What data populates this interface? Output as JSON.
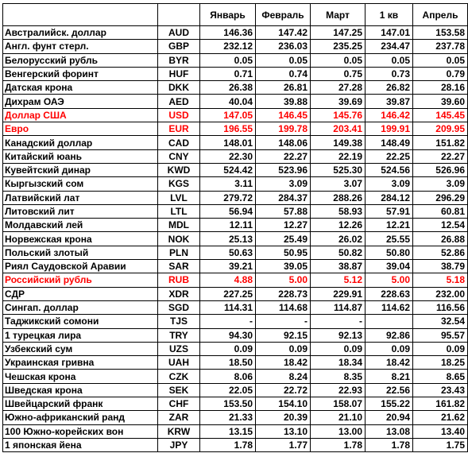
{
  "colors": {
    "text": "#000000",
    "highlight": "#ff0000",
    "grid": "#000000",
    "background": "#ffffff"
  },
  "headers": [
    "",
    "",
    "Январь",
    "Февраль",
    "Март",
    "1 кв",
    "Апрель"
  ],
  "rows": [
    {
      "name": "Австралийск. доллар",
      "code": "AUD",
      "values": [
        "146.36",
        "147.42",
        "147.25",
        "147.01",
        "153.58"
      ],
      "highlight": false
    },
    {
      "name": "Англ. фунт стерл.",
      "code": "GBP",
      "values": [
        "232.12",
        "236.03",
        "235.25",
        "234.47",
        "237.78"
      ],
      "highlight": false
    },
    {
      "name": "Белорусский рубль",
      "code": "BYR",
      "values": [
        "0.05",
        "0.05",
        "0.05",
        "0.05",
        "0.05"
      ],
      "highlight": false
    },
    {
      "name": "Венгерский форинт",
      "code": "HUF",
      "values": [
        "0.71",
        "0.74",
        "0.75",
        "0.73",
        "0.79"
      ],
      "highlight": false
    },
    {
      "name": "Датская крона",
      "code": "DKK",
      "values": [
        "26.38",
        "26.81",
        "27.28",
        "26.82",
        "28.16"
      ],
      "highlight": false
    },
    {
      "name": "Дихрам ОАЭ",
      "code": "AED",
      "values": [
        "40.04",
        "39.88",
        "39.69",
        "39.87",
        "39.60"
      ],
      "highlight": false
    },
    {
      "name": "Доллар США",
      "code": "USD",
      "values": [
        "147.05",
        "146.45",
        "145.76",
        "146.42",
        "145.45"
      ],
      "highlight": true
    },
    {
      "name": "Евро",
      "code": "EUR",
      "values": [
        "196.55",
        "199.78",
        "203.41",
        "199.91",
        "209.95"
      ],
      "highlight": true
    },
    {
      "name": "Канадский доллар",
      "code": "CAD",
      "values": [
        "148.01",
        "148.06",
        "149.38",
        "148.49",
        "151.82"
      ],
      "highlight": false
    },
    {
      "name": "Китайский юань",
      "code": "CNY",
      "values": [
        "22.30",
        "22.27",
        "22.19",
        "22.25",
        "22.27"
      ],
      "highlight": false
    },
    {
      "name": "Кувейтский динар",
      "code": "KWD",
      "values": [
        "524.42",
        "523.96",
        "525.30",
        "524.56",
        "526.96"
      ],
      "highlight": false
    },
    {
      "name": "Кыргызский сом",
      "code": "KGS",
      "values": [
        "3.11",
        "3.09",
        "3.07",
        "3.09",
        "3.09"
      ],
      "highlight": false
    },
    {
      "name": "Латвийский лат",
      "code": "LVL",
      "values": [
        "279.72",
        "284.37",
        "288.26",
        "284.12",
        "296.29"
      ],
      "highlight": false
    },
    {
      "name": "Литовский лит",
      "code": "LTL",
      "values": [
        "56.94",
        "57.88",
        "58.93",
        "57.91",
        "60.81"
      ],
      "highlight": false
    },
    {
      "name": "Молдавский лей",
      "code": "MDL",
      "values": [
        "12.11",
        "12.27",
        "12.26",
        "12.21",
        "12.54"
      ],
      "highlight": false
    },
    {
      "name": "Норвежская крона",
      "code": "NOK",
      "values": [
        "25.13",
        "25.49",
        "26.02",
        "25.55",
        "26.88"
      ],
      "highlight": false
    },
    {
      "name": "Польский злотый",
      "code": "PLN",
      "values": [
        "50.63",
        "50.95",
        "50.82",
        "50.80",
        "52.86"
      ],
      "highlight": false
    },
    {
      "name": "Риял Саудовской Аравии",
      "code": "SAR",
      "values": [
        "39.21",
        "39.05",
        "38.87",
        "39.04",
        "38.79"
      ],
      "highlight": false
    },
    {
      "name": "Российский рубль",
      "code": "RUB",
      "values": [
        "4.88",
        "5.00",
        "5.12",
        "5.00",
        "5.18"
      ],
      "highlight": true
    },
    {
      "name": "СДР",
      "code": "XDR",
      "values": [
        "227.25",
        "228.73",
        "229.91",
        "228.63",
        "232.00"
      ],
      "highlight": false
    },
    {
      "name": "Сингап. доллар",
      "code": "SGD",
      "values": [
        "114.31",
        "114.68",
        "114.87",
        "114.62",
        "116.56"
      ],
      "highlight": false
    },
    {
      "name": "Таджикский сомони",
      "code": "TJS",
      "values": [
        "-",
        "-",
        "-",
        "",
        "32.54"
      ],
      "highlight": false
    },
    {
      "name": "1 турецкая лира",
      "code": "TRY",
      "values": [
        "94.30",
        "92.15",
        "92.13",
        "92.86",
        "95.57"
      ],
      "highlight": false
    },
    {
      "name": "Узбекский сум",
      "code": "UZS",
      "values": [
        "0.09",
        "0.09",
        "0.09",
        "0.09",
        "0.09"
      ],
      "highlight": false
    },
    {
      "name": "Украинская гривна",
      "code": "UAH",
      "values": [
        "18.50",
        "18.42",
        "18.34",
        "18.42",
        "18.25"
      ],
      "highlight": false
    },
    {
      "name": "Чешская крона",
      "code": "CZK",
      "values": [
        "8.06",
        "8.24",
        "8.35",
        "8.21",
        "8.65"
      ],
      "highlight": false
    },
    {
      "name": "Шведская крона",
      "code": "SEK",
      "values": [
        "22.05",
        "22.72",
        "22.93",
        "22.56",
        "23.43"
      ],
      "highlight": false
    },
    {
      "name": "Швейцарский франк",
      "code": "CHF",
      "values": [
        "153.50",
        "154.10",
        "158.07",
        "155.22",
        "161.82"
      ],
      "highlight": false
    },
    {
      "name": "Южно-африканский ранд",
      "code": "ZAR",
      "values": [
        "21.33",
        "20.39",
        "21.10",
        "20.94",
        "21.62"
      ],
      "highlight": false
    },
    {
      "name": "100 Южно-корейских вон",
      "code": "KRW",
      "values": [
        "13.15",
        "13.10",
        "13.00",
        "13.08",
        "13.40"
      ],
      "highlight": false
    },
    {
      "name": "1 японская йена",
      "code": "JPY",
      "values": [
        "1.78",
        "1.77",
        "1.78",
        "1.78",
        "1.75"
      ],
      "highlight": false
    }
  ]
}
